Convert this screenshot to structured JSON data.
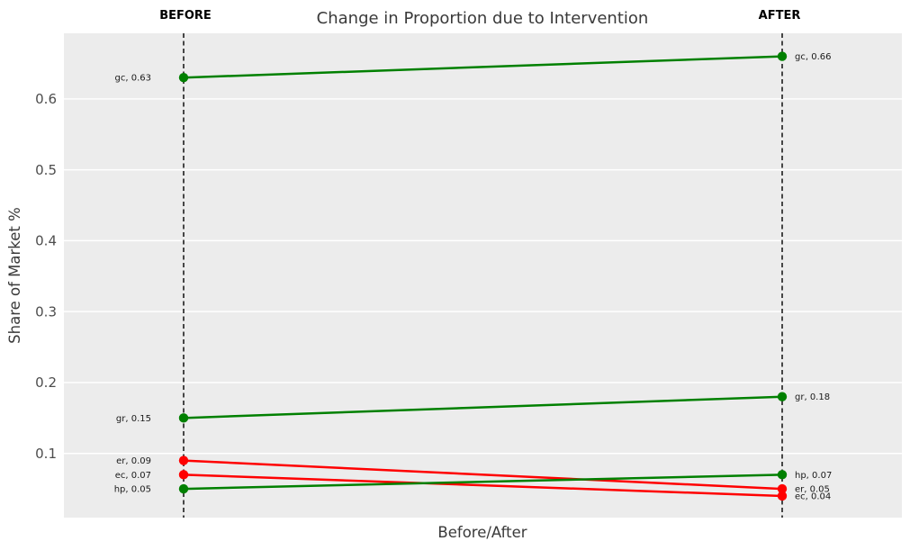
{
  "chart_data": {
    "type": "line",
    "variant": "slopegraph",
    "title": "Change in Proportion due to Intervention",
    "xlabel": "Before/After",
    "ylabel": "Share of Market %",
    "columns": [
      "BEFORE",
      "AFTER"
    ],
    "x": [
      "Before",
      "After"
    ],
    "ylim": [
      0.0095,
      0.6925
    ],
    "yticks": [
      0.1,
      0.2,
      0.3,
      0.4,
      0.5,
      0.6
    ],
    "ytick_labels": [
      "0.1",
      "0.2",
      "0.3",
      "0.4",
      "0.5",
      "0.6"
    ],
    "grid": "horizontal-major-white-on-gray",
    "legend": "none",
    "series": [
      {
        "name": "gc",
        "values": [
          0.63,
          0.66
        ],
        "trend": "increase",
        "color": "#008000",
        "label_before": "gc, 0.63",
        "label_after": "gc, 0.66"
      },
      {
        "name": "gr",
        "values": [
          0.15,
          0.18
        ],
        "trend": "increase",
        "color": "#008000",
        "label_before": "gr, 0.15",
        "label_after": "gr, 0.18"
      },
      {
        "name": "er",
        "values": [
          0.09,
          0.05
        ],
        "trend": "decrease",
        "color": "#ff0000",
        "label_before": "er, 0.09",
        "label_after": "er, 0.05"
      },
      {
        "name": "ec",
        "values": [
          0.07,
          0.04
        ],
        "trend": "decrease",
        "color": "#ff0000",
        "label_before": "ec, 0.07",
        "label_after": "ec, 0.04"
      },
      {
        "name": "hp",
        "values": [
          0.05,
          0.07
        ],
        "trend": "increase",
        "color": "#008000",
        "label_before": "hp, 0.05",
        "label_after": "hp, 0.07"
      }
    ]
  },
  "colors": {
    "page_bg": "#ffffff",
    "panel_bg": "#ececec",
    "gridline": "#ffffff",
    "increase": "#008000",
    "decrease": "#ff0000",
    "dashed_guide": "#000000",
    "title_text": "#3a3a3a",
    "tick_text": "#4d4d4d",
    "annotation_text": "#1a1a1a"
  }
}
